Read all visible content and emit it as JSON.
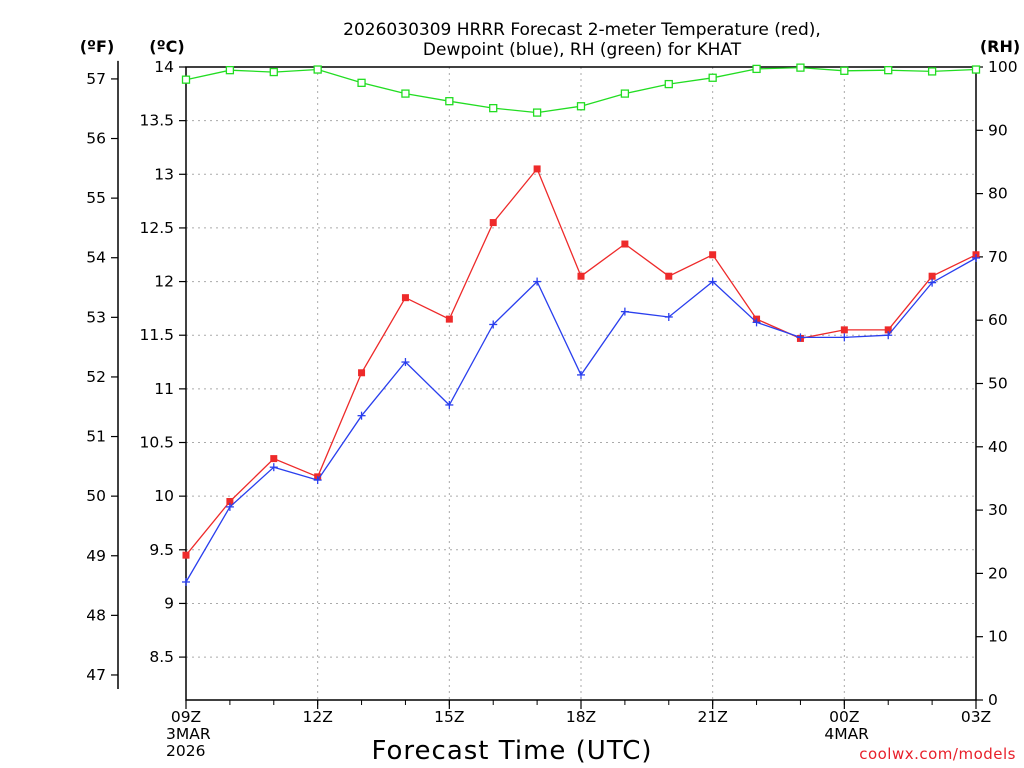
{
  "chart_data": {
    "type": "line",
    "title": [
      "2026030309 HRRR Forecast 2-meter Temperature (red),",
      "Dewpoint (blue), RH (green) for KHAT"
    ],
    "xlabel": "Forecast Time (UTC)",
    "credit": "coolwx.com/models",
    "units": {
      "fahrenheit": "(ºF)",
      "celsius": "(ºC)",
      "rh": "(RH)"
    },
    "x_count": 19,
    "x_ticks": [
      {
        "index": 0,
        "label": "09Z",
        "sub": [
          "3MAR",
          "2026"
        ]
      },
      {
        "index": 3,
        "label": "12Z",
        "sub": []
      },
      {
        "index": 6,
        "label": "15Z",
        "sub": []
      },
      {
        "index": 9,
        "label": "18Z",
        "sub": []
      },
      {
        "index": 12,
        "label": "21Z",
        "sub": []
      },
      {
        "index": 15,
        "label": "00Z",
        "sub": [
          "4MAR"
        ]
      },
      {
        "index": 18,
        "label": "03Z",
        "sub": []
      }
    ],
    "celsius_axis": {
      "min": 8.1,
      "max": 14.0,
      "ticks": [
        8.5,
        9,
        9.5,
        10,
        10.5,
        11,
        11.5,
        12,
        12.5,
        13,
        13.5,
        14
      ]
    },
    "fahrenheit_axis": {
      "ticks": [
        47,
        48,
        49,
        50,
        51,
        52,
        53,
        54,
        55,
        56,
        57
      ]
    },
    "rh_axis": {
      "min": 0,
      "max": 100,
      "ticks": [
        0,
        10,
        20,
        30,
        40,
        50,
        60,
        70,
        80,
        90,
        100
      ]
    },
    "series": [
      {
        "key": "temperature",
        "axis": "celsius",
        "color": "#ee2a2a",
        "marker": "filled-square",
        "values": [
          9.45,
          9.95,
          10.35,
          10.18,
          11.15,
          11.85,
          11.65,
          12.55,
          13.05,
          12.05,
          12.35,
          12.05,
          12.25,
          11.65,
          11.47,
          11.55,
          11.55,
          12.05,
          12.25
        ]
      },
      {
        "key": "dewpoint",
        "axis": "celsius",
        "color": "#2a3fee",
        "marker": "plus",
        "values": [
          9.2,
          9.9,
          10.27,
          10.15,
          10.75,
          11.25,
          10.85,
          11.6,
          12.0,
          11.13,
          11.72,
          11.67,
          12.0,
          11.62,
          11.48,
          11.48,
          11.5,
          11.99,
          12.22
        ]
      },
      {
        "key": "rh",
        "axis": "rh",
        "color": "#22dd22",
        "marker": "open-square",
        "values": [
          98,
          99.5,
          99.2,
          99.6,
          97.5,
          95.8,
          94.6,
          93.5,
          92.8,
          93.8,
          95.8,
          97.3,
          98.3,
          99.7,
          99.9,
          99.4,
          99.5,
          99.3,
          99.6
        ]
      }
    ],
    "grid": true
  }
}
